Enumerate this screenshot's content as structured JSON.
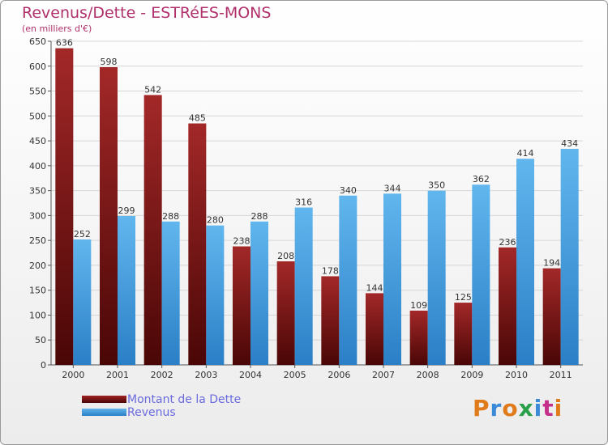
{
  "header": {
    "title": "Revenus/Dette - ESTRéES-MONS",
    "subtitle": "(en milliers d'€)"
  },
  "legend": {
    "items": [
      {
        "label": "Montant de la Dette",
        "color": "#7a1414"
      },
      {
        "label": "Revenus",
        "color": "#4a9ee0"
      }
    ]
  },
  "logo": {
    "text": "Proxiti",
    "colors": [
      "#e07a1a",
      "#3a8ad8",
      "#e07a1a",
      "#2aa04a",
      "#3a8ad8",
      "#c4308a",
      "#e07a1a"
    ]
  },
  "chart_data": {
    "type": "bar",
    "title": "Revenus/Dette - ESTRéES-MONS",
    "subtitle": "(en milliers d'€)",
    "categories": [
      "2000",
      "2001",
      "2002",
      "2003",
      "2004",
      "2005",
      "2006",
      "2007",
      "2008",
      "2009",
      "2010",
      "2011"
    ],
    "series": [
      {
        "name": "Montant de la Dette",
        "color": "#7a1414",
        "values": [
          636,
          598,
          542,
          485,
          238,
          208,
          178,
          144,
          109,
          125,
          236,
          194
        ]
      },
      {
        "name": "Revenus",
        "color": "#4a9ee0",
        "values": [
          252,
          299,
          288,
          280,
          288,
          316,
          340,
          344,
          350,
          362,
          414,
          434
        ]
      }
    ],
    "ylim": [
      0,
      650
    ],
    "yticks": [
      0,
      50,
      100,
      150,
      200,
      250,
      300,
      350,
      400,
      450,
      500,
      550,
      600,
      650
    ],
    "grid": true,
    "legend_position": "bottom-left"
  }
}
